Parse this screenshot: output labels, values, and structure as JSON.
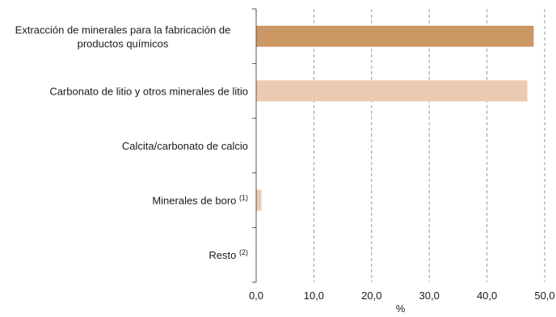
{
  "chart_data": {
    "type": "bar",
    "orientation": "horizontal",
    "categories": [
      {
        "lines": [
          "Extracción de minerales para la fabricación de",
          "productos químicos"
        ],
        "note": ""
      },
      {
        "lines": [
          "Carbonato de litio y otros minerales de litio"
        ],
        "note": ""
      },
      {
        "lines": [
          "Calcita/carbonato de calcio"
        ],
        "note": ""
      },
      {
        "lines": [
          "Minerales de boro"
        ],
        "note": "(1)"
      },
      {
        "lines": [
          "Resto"
        ],
        "note": "(2)"
      }
    ],
    "series": [
      {
        "values": [
          48.1,
          47.0,
          0.0,
          0.9,
          0.0
        ],
        "colors": [
          "#CB9764",
          "#EACBB2",
          "#EACBB2",
          "#EACBB2",
          "#EACBB2"
        ]
      }
    ],
    "xlim": [
      0,
      50
    ],
    "xticks": [
      "0,0",
      "10,0",
      "20,0",
      "30,0",
      "40,0",
      "50,0"
    ],
    "xlabel": "%",
    "grid": "vertical-dashed",
    "legend": "none"
  }
}
